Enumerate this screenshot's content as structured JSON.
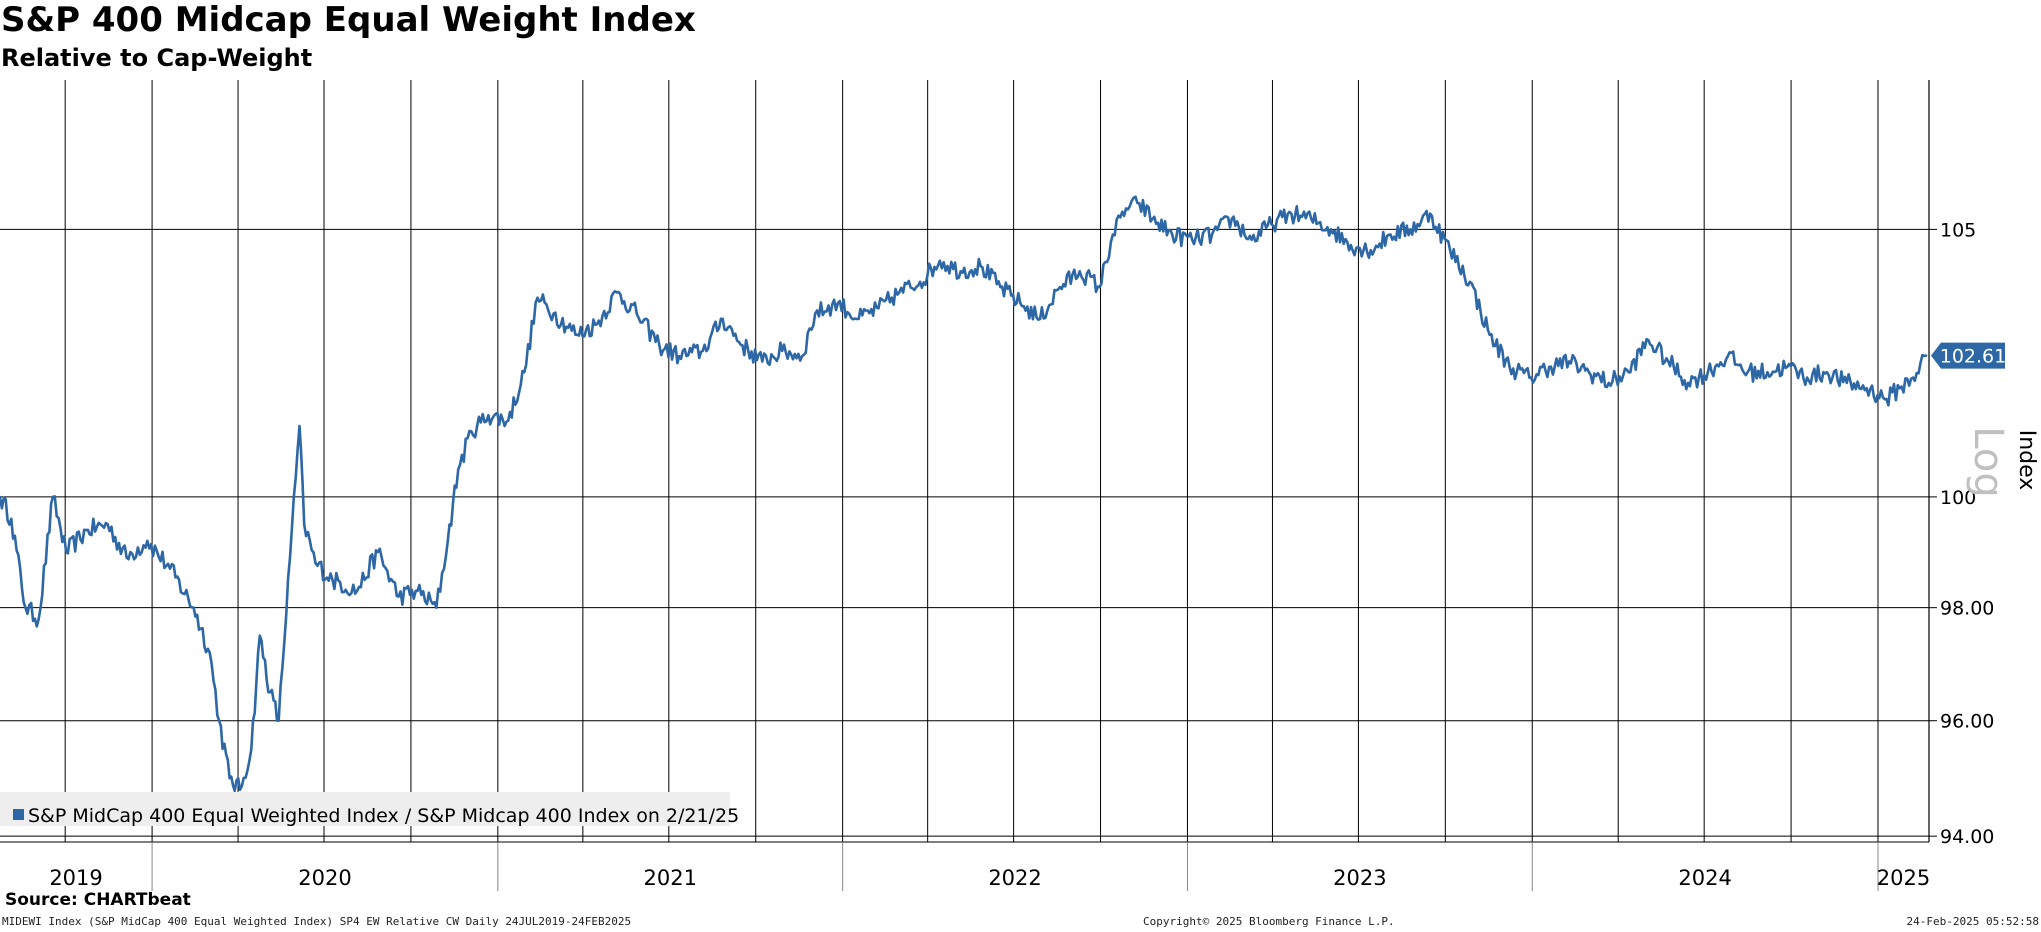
{
  "header": {
    "title": "S&P 400 Midcap Equal Weight Index",
    "subtitle": "Relative to Cap-Weight"
  },
  "footer": {
    "source": "Source: CHARTbeat",
    "left": "MIDEWI Index (S&P MidCap 400 Equal Weighted Index) SP4 EW Relative CW  Daily 24JUL2019-24FEB2025",
    "middle": "Copyright© 2025 Bloomberg Finance L.P.",
    "right": "24-Feb-2025 05:52:58"
  },
  "colors": {
    "series": "#2e67a6",
    "grid": "#000000",
    "badge_text": "#ffffff",
    "log_watermark": "#c0c0c0",
    "legend_bg": "#eeeeee"
  },
  "chart_data": {
    "type": "line",
    "title": "S&P 400 Midcap Equal Weight Index",
    "subtitle": "Relative to Cap-Weight",
    "xlabel": "",
    "ylabel": "Index",
    "scale": "log",
    "scale_label": "Log",
    "x_range": [
      "2019-07-24",
      "2025-02-24"
    ],
    "ylim": [
      93.9,
      107.9
    ],
    "y_ticks": [
      94.0,
      96.0,
      98.0,
      100,
      105
    ],
    "y_tick_labels": [
      "94.00",
      "96.00",
      "98.00",
      "100",
      "105"
    ],
    "x_year_labels": [
      "2019",
      "2020",
      "2021",
      "2022",
      "2023",
      "2024",
      "2025"
    ],
    "grid": true,
    "last_value_label": "102.61",
    "legend": {
      "placement": "bottom-left",
      "entries": [
        "S&P MidCap 400 Equal Weighted Index / S&P Midcap 400 Index on 2/21/25"
      ]
    },
    "series": [
      {
        "name": "S&P MidCap 400 Equal Weighted Index / S&P Midcap 400 Index on 2/21/25",
        "points": [
          [
            "2019-07-24",
            100.0
          ],
          [
            "2019-08-05",
            99.6
          ],
          [
            "2019-08-20",
            98.0
          ],
          [
            "2019-09-03",
            97.8
          ],
          [
            "2019-09-18",
            100.0
          ],
          [
            "2019-10-02",
            99.0
          ],
          [
            "2019-10-25",
            99.4
          ],
          [
            "2019-11-15",
            99.5
          ],
          [
            "2019-12-05",
            98.9
          ],
          [
            "2019-12-27",
            99.2
          ],
          [
            "2020-01-20",
            98.7
          ],
          [
            "2020-02-14",
            98.0
          ],
          [
            "2020-03-02",
            97.2
          ],
          [
            "2020-03-12",
            96.0
          ],
          [
            "2020-03-23",
            95.0
          ],
          [
            "2020-04-03",
            94.8
          ],
          [
            "2020-04-15",
            95.5
          ],
          [
            "2020-04-24",
            97.5
          ],
          [
            "2020-05-05",
            96.5
          ],
          [
            "2020-05-14",
            96.0
          ],
          [
            "2020-05-26",
            98.9
          ],
          [
            "2020-06-05",
            101.3
          ],
          [
            "2020-06-10",
            99.5
          ],
          [
            "2020-06-22",
            98.8
          ],
          [
            "2020-07-10",
            98.5
          ],
          [
            "2020-08-05",
            98.3
          ],
          [
            "2020-08-27",
            99.0
          ],
          [
            "2020-09-18",
            98.2
          ],
          [
            "2020-10-08",
            98.3
          ],
          [
            "2020-10-28",
            98.0
          ],
          [
            "2020-11-09",
            99.2
          ],
          [
            "2020-11-20",
            100.5
          ],
          [
            "2020-12-04",
            101.2
          ],
          [
            "2020-12-22",
            101.5
          ],
          [
            "2021-01-12",
            101.4
          ],
          [
            "2021-01-29",
            102.3
          ],
          [
            "2021-02-12",
            103.7
          ],
          [
            "2021-03-01",
            103.4
          ],
          [
            "2021-03-26",
            103.0
          ],
          [
            "2021-04-16",
            103.2
          ],
          [
            "2021-05-07",
            103.8
          ],
          [
            "2021-05-28",
            103.4
          ],
          [
            "2021-06-21",
            102.8
          ],
          [
            "2021-07-12",
            102.6
          ],
          [
            "2021-08-06",
            102.7
          ],
          [
            "2021-08-27",
            103.3
          ],
          [
            "2021-09-17",
            102.8
          ],
          [
            "2021-10-08",
            102.5
          ],
          [
            "2021-10-29",
            102.7
          ],
          [
            "2021-11-19",
            102.6
          ],
          [
            "2021-12-03",
            103.4
          ],
          [
            "2021-12-27",
            103.6
          ],
          [
            "2022-01-18",
            103.3
          ],
          [
            "2022-02-08",
            103.5
          ],
          [
            "2022-03-02",
            103.8
          ],
          [
            "2022-03-24",
            104.0
          ],
          [
            "2022-04-14",
            104.4
          ],
          [
            "2022-05-06",
            104.2
          ],
          [
            "2022-05-27",
            104.3
          ],
          [
            "2022-06-17",
            103.9
          ],
          [
            "2022-07-08",
            103.6
          ],
          [
            "2022-07-29",
            103.3
          ],
          [
            "2022-08-19",
            103.9
          ],
          [
            "2022-09-09",
            104.2
          ],
          [
            "2022-09-30",
            103.9
          ],
          [
            "2022-10-14",
            104.9
          ],
          [
            "2022-10-28",
            105.4
          ],
          [
            "2022-11-11",
            105.5
          ],
          [
            "2022-11-25",
            105.2
          ],
          [
            "2022-12-16",
            104.9
          ],
          [
            "2023-01-06",
            104.8
          ],
          [
            "2023-01-27",
            104.9
          ],
          [
            "2023-02-17",
            105.2
          ],
          [
            "2023-03-10",
            104.8
          ],
          [
            "2023-03-31",
            105.1
          ],
          [
            "2023-04-21",
            105.3
          ],
          [
            "2023-05-12",
            105.2
          ],
          [
            "2023-06-02",
            105.0
          ],
          [
            "2023-06-23",
            104.7
          ],
          [
            "2023-07-14",
            104.6
          ],
          [
            "2023-08-04",
            104.9
          ],
          [
            "2023-08-25",
            105.0
          ],
          [
            "2023-09-15",
            105.3
          ],
          [
            "2023-10-06",
            104.6
          ],
          [
            "2023-10-27",
            104.0
          ],
          [
            "2023-11-17",
            103.0
          ],
          [
            "2023-12-08",
            102.4
          ],
          [
            "2023-12-29",
            102.2
          ],
          [
            "2024-01-19",
            102.4
          ],
          [
            "2024-02-09",
            102.5
          ],
          [
            "2024-03-01",
            102.3
          ],
          [
            "2024-03-22",
            102.1
          ],
          [
            "2024-04-12",
            102.3
          ],
          [
            "2024-05-03",
            102.9
          ],
          [
            "2024-05-24",
            102.5
          ],
          [
            "2024-06-14",
            102.1
          ],
          [
            "2024-07-05",
            102.3
          ],
          [
            "2024-07-26",
            102.6
          ],
          [
            "2024-08-16",
            102.3
          ],
          [
            "2024-09-06",
            102.3
          ],
          [
            "2024-09-27",
            102.4
          ],
          [
            "2024-10-18",
            102.2
          ],
          [
            "2024-11-08",
            102.3
          ],
          [
            "2024-11-29",
            102.1
          ],
          [
            "2024-12-20",
            102.0
          ],
          [
            "2025-01-10",
            101.8
          ],
          [
            "2025-01-24",
            102.0
          ],
          [
            "2025-02-07",
            102.2
          ],
          [
            "2025-02-21",
            102.61
          ]
        ]
      }
    ]
  }
}
